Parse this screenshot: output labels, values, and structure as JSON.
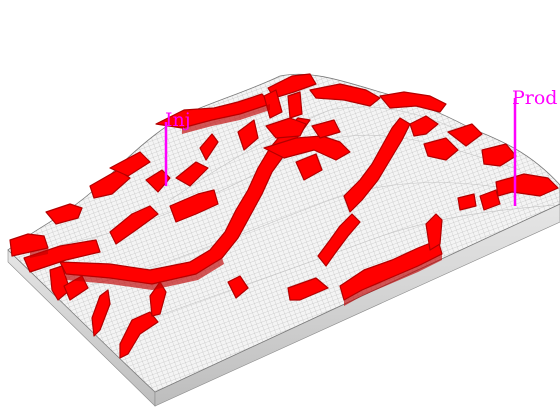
{
  "colors": {
    "background": "#ffffff",
    "surface_fill": "#f2f2f2",
    "surface_side": "#d9d9d9",
    "grid_line": "#9a9a9a",
    "channel_fill": "#ff0000",
    "channel_dark": "#b30000",
    "well_color": "#ff00ff"
  },
  "wells": [
    {
      "label": "Inj"
    },
    {
      "label": "Prod"
    }
  ]
}
